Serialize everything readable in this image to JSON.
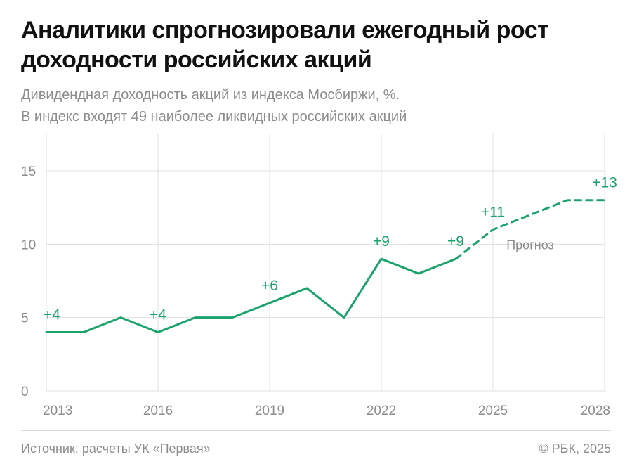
{
  "header": {
    "title": "Аналитики спрогнозировали ежегодный рост доходности российских акций",
    "subtitle_line1": "Дивидендная доходность акций из индекса Мосбиржи, %.",
    "subtitle_line2": "В индекс входят 49 наиболее ликвидных российских акций"
  },
  "footer": {
    "source": "Источник: расчеты УК «Первая»",
    "copyright": "© РБК, 2025"
  },
  "colors": {
    "series": "#1aa36b",
    "grid": "#e0e0e0",
    "axis_text": "#8c8c8c"
  },
  "chart_data": {
    "type": "line",
    "title": "",
    "xlabel": "",
    "ylabel": "",
    "xlim": [
      2013,
      2028
    ],
    "ylim": [
      0,
      15
    ],
    "x_ticks": [
      2013,
      2016,
      2019,
      2022,
      2025,
      2028
    ],
    "y_ticks": [
      0,
      5,
      10,
      15
    ],
    "grid": true,
    "series": [
      {
        "name": "",
        "style": "solid",
        "x": [
          2013,
          2014,
          2015,
          2016,
          2017,
          2018,
          2019,
          2020,
          2021,
          2022,
          2023,
          2024
        ],
        "values": [
          4,
          4,
          5,
          4,
          5,
          5,
          6,
          7,
          5,
          9,
          8,
          9
        ]
      },
      {
        "name": "Прогноз",
        "style": "dashed",
        "x": [
          2024,
          2025,
          2026,
          2027,
          2028
        ],
        "values": [
          9,
          11,
          12,
          13,
          13
        ]
      }
    ],
    "point_labels": [
      {
        "x": 2013,
        "y": 4,
        "text": "+4"
      },
      {
        "x": 2016,
        "y": 4,
        "text": "+4"
      },
      {
        "x": 2019,
        "y": 6,
        "text": "+6"
      },
      {
        "x": 2022,
        "y": 9,
        "text": "+9"
      },
      {
        "x": 2024,
        "y": 9,
        "text": "+9"
      },
      {
        "x": 2025,
        "y": 11,
        "text": "+11"
      },
      {
        "x": 2028,
        "y": 13,
        "text": "+13"
      }
    ],
    "annotations": [
      {
        "text": "Прогноз",
        "x": 2026,
        "y": 10
      }
    ]
  }
}
